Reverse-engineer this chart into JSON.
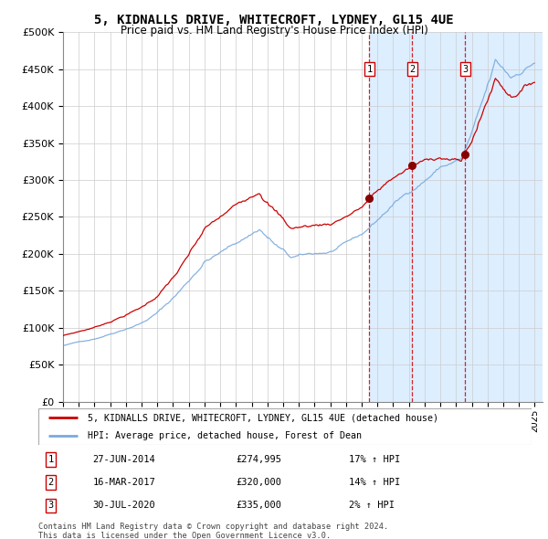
{
  "title1": "5, KIDNALLS DRIVE, WHITECROFT, LYDNEY, GL15 4UE",
  "title2": "Price paid vs. HM Land Registry's House Price Index (HPI)",
  "legend_label1": "5, KIDNALLS DRIVE, WHITECROFT, LYDNEY, GL15 4UE (detached house)",
  "legend_label2": "HPI: Average price, detached house, Forest of Dean",
  "transactions": [
    {
      "label": "1",
      "date": "27-JUN-2014",
      "date_num": 2014.49,
      "price": 274995,
      "pct": "17% ↑ HPI"
    },
    {
      "label": "2",
      "date": "16-MAR-2017",
      "date_num": 2017.21,
      "price": 320000,
      "pct": "14% ↑ HPI"
    },
    {
      "label": "3",
      "date": "30-JUL-2020",
      "date_num": 2020.58,
      "price": 335000,
      "pct": "2% ↑ HPI"
    }
  ],
  "footnote1": "Contains HM Land Registry data © Crown copyright and database right 2024.",
  "footnote2": "This data is licensed under the Open Government Licence v3.0.",
  "line_color_red": "#cc0000",
  "line_color_blue": "#7aaadd",
  "dot_color": "#880000",
  "background_color": "#ddeeff",
  "ylim_max": 500000,
  "year_start": 1995,
  "year_end": 2025
}
